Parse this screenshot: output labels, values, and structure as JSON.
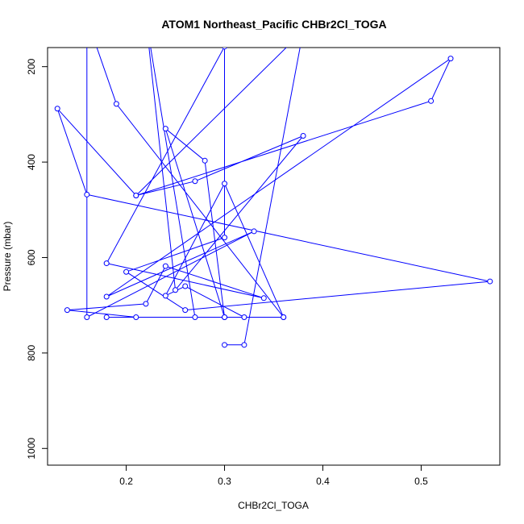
{
  "chart_data": {
    "type": "line",
    "title": "ATOM1 Northeast_Pacific CHBr2Cl_TOGA",
    "xlabel": "CHBr2Cl_TOGA",
    "ylabel": "Pressure (mbar)",
    "xlim": [
      0.12,
      0.58
    ],
    "ylim": [
      1035,
      160
    ],
    "y_reversed": true,
    "grid": false,
    "legend": "none",
    "x_ticks": [
      0.2,
      0.3,
      0.4,
      0.5
    ],
    "x_tick_labels": [
      "0.2",
      "0.3",
      "0.4",
      "0.5"
    ],
    "y_ticks": [
      200,
      400,
      600,
      800,
      1000
    ],
    "y_tick_labels": [
      "200",
      "400",
      "600",
      "800",
      "1000"
    ],
    "color": "#0000ff",
    "series": [
      {
        "x": [
          0.3,
          0.32,
          0.38,
          0.21,
          0.13,
          0.16,
          0.57,
          0.26,
          0.2,
          0.3,
          0.3,
          0.18,
          0.34,
          0.24,
          0.22,
          0.14,
          0.21,
          0.3,
          0.24,
          0.28,
          0.3,
          0.18,
          0.36,
          0.19,
          0.16,
          0.16,
          0.33,
          0.18,
          0.53,
          0.51,
          0.21,
          0.27,
          0.38,
          0.25,
          0.22,
          0.27,
          0.32,
          0.26,
          0.24,
          0.3,
          0.36
        ],
        "y": [
          783,
          783,
          125,
          470,
          288,
          468,
          650,
          710,
          630,
          558,
          158,
          612,
          685,
          618,
          697,
          710,
          725,
          725,
          330,
          397,
          725,
          725,
          725,
          278,
          100,
          725,
          545,
          682,
          183,
          272,
          470,
          440,
          345,
          668,
          100,
          725,
          725,
          660,
          680,
          445,
          725
        ]
      }
    ]
  }
}
